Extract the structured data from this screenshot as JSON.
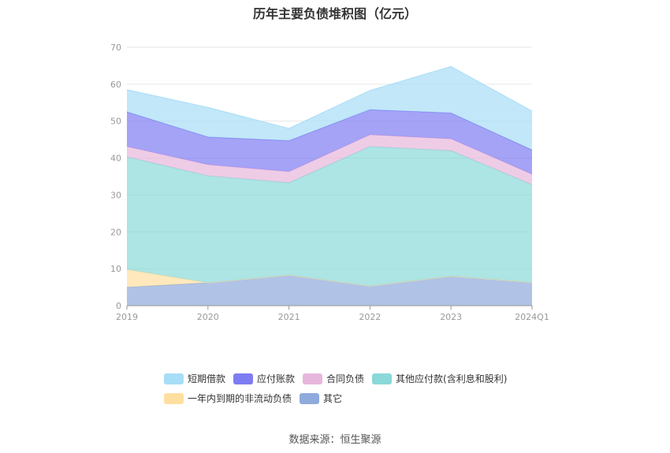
{
  "chart_data": {
    "type": "area",
    "stacked": true,
    "title": "历年主要负债堆积图（亿元）",
    "categories": [
      "2019",
      "2020",
      "2021",
      "2022",
      "2023",
      "2024Q1"
    ],
    "ylim": [
      0,
      70
    ],
    "yticks": [
      0,
      10,
      20,
      30,
      40,
      50,
      60,
      70
    ],
    "grid": true,
    "legend_position": "bottom",
    "series": [
      {
        "name": "其它",
        "color": "#8faadc",
        "values": [
          5.0,
          6.2,
          8.3,
          5.3,
          8.0,
          6.3
        ]
      },
      {
        "name": "一年内到期的非流动负债",
        "color": "#ffdf9f",
        "values": [
          4.8,
          0.0,
          0.0,
          0.0,
          0.0,
          0.0
        ]
      },
      {
        "name": "其他应付款(含利息和股利)",
        "color": "#8ad8d8",
        "values": [
          30.5,
          29.0,
          25.0,
          37.8,
          34.0,
          26.5
        ]
      },
      {
        "name": "合同负债",
        "color": "#e7b6dc",
        "values": [
          2.8,
          3.0,
          3.0,
          3.2,
          3.2,
          2.8
        ]
      },
      {
        "name": "应付账款",
        "color": "#7d7cf2",
        "values": [
          9.4,
          7.5,
          8.4,
          6.8,
          7.0,
          6.6
        ]
      },
      {
        "name": "短期借款",
        "color": "#a8ddf7",
        "values": [
          6.0,
          8.0,
          3.3,
          5.2,
          12.6,
          10.5
        ]
      }
    ],
    "legend_order": [
      "短期借款",
      "应付账款",
      "合同负债",
      "其他应付款(含利息和股利)",
      "一年内到期的非流动负债",
      "其它"
    ]
  },
  "footer": {
    "source": "数据来源：恒生聚源"
  }
}
